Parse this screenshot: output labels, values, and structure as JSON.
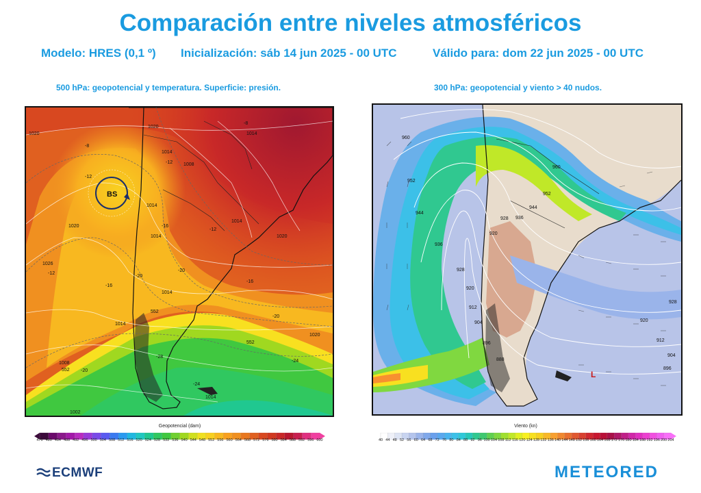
{
  "header": {
    "title": "Comparación entre niveles atmosféricos",
    "model": "Modelo: HRES (0,1 º)",
    "init": "Inicialización: sáb 14 jun 2025 - 00 UTC",
    "valid": "Válido para: dom 22 jun 2025 - 00 UTC"
  },
  "left_panel": {
    "caption": "500 hPa: geopotencial y temperatura. Superficie: presión.",
    "low_label": "BS",
    "isobar_labels": [
      "1020",
      "1020",
      "1014",
      "1014",
      "1008",
      "1014",
      "1014",
      "1014",
      "1020",
      "1026",
      "1020",
      "1014",
      "1008",
      "1002",
      "1014",
      "1020",
      "1014"
    ],
    "temp_labels": [
      "-8",
      "-12",
      "-16",
      "-12",
      "-8",
      "-12",
      "-20",
      "-16",
      "-16",
      "-12",
      "-20",
      "-24",
      "-28",
      "-20",
      "-24",
      "-20"
    ],
    "geo_labels": [
      "552",
      "552",
      "552"
    ],
    "colorbar_title": "Geopotencial (dam)",
    "colorbar_ticks": [
      "476",
      "480",
      "484",
      "488",
      "492",
      "496",
      "500",
      "504",
      "508",
      "512",
      "516",
      "520",
      "524",
      "528",
      "532",
      "536",
      "540",
      "544",
      "548",
      "552",
      "556",
      "560",
      "564",
      "568",
      "572",
      "576",
      "580",
      "584",
      "588",
      "592",
      "596",
      "600"
    ]
  },
  "right_panel": {
    "caption": "300 hPa: geopotencial y viento > 40 nudos.",
    "low_label": "L",
    "geo_labels": [
      "960",
      "952",
      "944",
      "936",
      "928",
      "920",
      "912",
      "904",
      "896",
      "888",
      "960",
      "952",
      "944",
      "936",
      "928",
      "920",
      "928",
      "920",
      "912",
      "904",
      "896"
    ],
    "colorbar_title": "Viento (kn)",
    "colorbar_ticks": [
      "40",
      "44",
      "48",
      "52",
      "56",
      "60",
      "64",
      "68",
      "72",
      "76",
      "80",
      "84",
      "88",
      "92",
      "96",
      "100",
      "104",
      "108",
      "112",
      "116",
      "120",
      "124",
      "128",
      "132",
      "136",
      "140",
      "144",
      "148",
      "152",
      "156",
      "160",
      "164",
      "168",
      "172",
      "176",
      "180",
      "184",
      "188",
      "192",
      "196",
      "200",
      "204"
    ]
  },
  "footer": {
    "logo_left": "ECMWF",
    "logo_right": "METEORED"
  },
  "colors": {
    "accent": "#1a9be0",
    "geo_scale": [
      "#3b0a3a",
      "#6a0a6a",
      "#8a1a8a",
      "#a21aa8",
      "#b82cc0",
      "#9a3ad8",
      "#7a4ae8",
      "#5a5af0",
      "#3a7af0",
      "#2a9af0",
      "#20b8e0",
      "#20c8c0",
      "#20c890",
      "#30c860",
      "#40c840",
      "#70d030",
      "#a0d820",
      "#d0e020",
      "#f0e020",
      "#f8d020",
      "#f8b820",
      "#f8a020",
      "#f09020",
      "#e87820",
      "#e06020",
      "#d84820",
      "#d03820",
      "#c82828",
      "#b81830",
      "#c82050",
      "#e03080",
      "#f040a0"
    ],
    "wind_scale": [
      "#ffffff",
      "#eef0f8",
      "#dde4f4",
      "#c8d4f0",
      "#b4c4ec",
      "#9ab4ea",
      "#80a8ea",
      "#6aa0ec",
      "#5aa8ee",
      "#4ab4ee",
      "#3cc0e8",
      "#30c8d8",
      "#28c8b8",
      "#30c890",
      "#40c870",
      "#60d050",
      "#80d840",
      "#a0e030",
      "#c0e828",
      "#e0f020",
      "#f8f020",
      "#f8e020",
      "#f8d020",
      "#f8b828",
      "#f8a030",
      "#f08830",
      "#e87030",
      "#e05830",
      "#d84030",
      "#d02830",
      "#c81830",
      "#b81038",
      "#a81048",
      "#b01868",
      "#c02088",
      "#d028a8",
      "#e030c0",
      "#ec40d0",
      "#f050e0",
      "#f060f0",
      "#f870f8"
    ]
  }
}
